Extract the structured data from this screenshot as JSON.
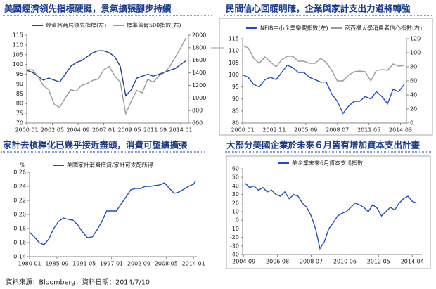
{
  "chart_data": [
    {
      "type": "line",
      "title": "美國經濟領先指標硬挺，景氣擴張腳步持續",
      "frame": false,
      "x": [
        2000,
        2000.5,
        2001,
        2001.5,
        2002,
        2002.5,
        2003,
        2003.5,
        2004,
        2004.5,
        2005,
        2005.5,
        2006,
        2006.5,
        2007,
        2007.5,
        2008,
        2008.5,
        2009,
        2009.5,
        2010,
        2010.5,
        2011,
        2011.5,
        2012,
        2012.5,
        2013,
        2013.5,
        2014,
        2014.5
      ],
      "xlim": [
        2000,
        2014.7
      ],
      "xticks": [
        {
          "value": 2000,
          "label": "2000 01"
        },
        {
          "value": 2002.333,
          "label": "2002 05"
        },
        {
          "value": 2004.667,
          "label": "2004 09"
        },
        {
          "value": 2007,
          "label": "2007 01"
        },
        {
          "value": 2009.333,
          "label": "2009 05"
        },
        {
          "value": 2011.667,
          "label": "2011 09"
        },
        {
          "value": 2014,
          "label": "2014 01"
        }
      ],
      "ylim": [
        70,
        115
      ],
      "yticks": [
        70,
        75,
        80,
        85,
        90,
        95,
        100,
        105,
        110,
        115
      ],
      "y2lim": [
        600,
        2000
      ],
      "y2ticks": [
        600,
        800,
        1000,
        1200,
        1400,
        1600,
        1800,
        2000
      ],
      "series": [
        {
          "name": "經濟諮商局領先指標(左)",
          "color": "#1f3f8f",
          "values": [
            97,
            96,
            94,
            92,
            93,
            92,
            91,
            95,
            99,
            101,
            102,
            104,
            106,
            107,
            107,
            106,
            104,
            99,
            84,
            87,
            93,
            94,
            95,
            94,
            95,
            96,
            97,
            98,
            100,
            102
          ]
        },
        {
          "name": "標準普爾500指數(右)",
          "color": "#9a9a9a",
          "axis": "y2",
          "values": [
            1450,
            1450,
            1350,
            1200,
            1130,
            900,
            850,
            1000,
            1130,
            1110,
            1200,
            1230,
            1280,
            1300,
            1450,
            1500,
            1350,
            1250,
            750,
            950,
            1120,
            1080,
            1300,
            1250,
            1350,
            1400,
            1500,
            1650,
            1800,
            1960
          ]
        }
      ]
    },
    {
      "type": "line",
      "title": "民間信心回暖明確，企業與家計支出力道將轉強",
      "frame": true,
      "x": [
        2000,
        2000.5,
        2001,
        2001.5,
        2002,
        2002.5,
        2003,
        2003.5,
        2004,
        2004.5,
        2005,
        2005.5,
        2006,
        2006.5,
        2007,
        2007.5,
        2008,
        2008.5,
        2009,
        2009.5,
        2010,
        2010.5,
        2011,
        2011.5,
        2012,
        2012.5,
        2013,
        2013.5,
        2014,
        2014.5
      ],
      "xlim": [
        2000,
        2014.7
      ],
      "xticks": [
        {
          "value": 2000,
          "label": "2000 01"
        },
        {
          "value": 2002.833,
          "label": "2002 11"
        },
        {
          "value": 2005.667,
          "label": "2005 09"
        },
        {
          "value": 2008.5,
          "label": "2008 07"
        },
        {
          "value": 2011.333,
          "label": "2011 05"
        },
        {
          "value": 2014.167,
          "label": "2014 03"
        }
      ],
      "ylim": [
        80,
        115
      ],
      "yticks": [
        80,
        85,
        90,
        95,
        100,
        105,
        110,
        115
      ],
      "y2lim": [
        0,
        120
      ],
      "y2ticks": [
        0,
        20,
        40,
        60,
        80,
        100,
        120
      ],
      "series": [
        {
          "name": "NFIB中小企業樂觀指數(左)",
          "color": "#1f4fbf",
          "values": [
            100,
            99,
            96,
            95,
            98,
            99,
            98,
            101,
            104,
            103,
            101,
            101,
            99,
            98,
            97,
            97,
            92,
            89,
            84,
            87,
            89,
            89,
            91,
            90,
            93,
            91,
            88,
            94,
            93,
            96
          ]
        },
        {
          "name": "密西根大學消費者信心指數(右)",
          "color": "#9a9a9a",
          "axis": "y2",
          "values": [
            110,
            107,
            92,
            85,
            94,
            87,
            80,
            90,
            95,
            95,
            88,
            88,
            85,
            85,
            92,
            86,
            75,
            60,
            60,
            68,
            73,
            74,
            73,
            60,
            75,
            76,
            75,
            84,
            81,
            82
          ]
        }
      ]
    },
    {
      "type": "line",
      "title": "家計去槓桿化已幾乎接近盡頭，消費可望續擴張",
      "frame": false,
      "y_label": "%",
      "x": [
        1980,
        1981,
        1982,
        1983,
        1984,
        1985,
        1986,
        1987,
        1988,
        1989,
        1990,
        1991,
        1992,
        1993,
        1994,
        1995,
        1996,
        1997,
        1998,
        1999,
        2000,
        2001,
        2002,
        2003,
        2004,
        2005,
        2006,
        2007,
        2008,
        2009,
        2010,
        2011,
        2012,
        2013,
        2014,
        2014.5
      ],
      "xlim": [
        1980,
        2014.7
      ],
      "xticks": [
        {
          "value": 1980,
          "label": "1980 01"
        },
        {
          "value": 1985.667,
          "label": "1985 09"
        },
        {
          "value": 1991.333,
          "label": "1991 05"
        },
        {
          "value": 1997,
          "label": "1997 01"
        },
        {
          "value": 2002.667,
          "label": "2002 09"
        },
        {
          "value": 2008.333,
          "label": "2008 05"
        },
        {
          "value": 2014,
          "label": "2014 01"
        }
      ],
      "ylim": [
        0.14,
        0.26
      ],
      "yticks": [
        0.14,
        0.16,
        0.18,
        {
          "value": 0.2,
          "label": "0.20"
        },
        0.22,
        0.24,
        0.26
      ],
      "series": [
        {
          "name": "美國家計消費借貸/家計可支配所得",
          "color": "#1f4fbf",
          "values": [
            0.175,
            0.168,
            0.16,
            0.157,
            0.165,
            0.18,
            0.19,
            0.195,
            0.193,
            0.192,
            0.185,
            0.175,
            0.167,
            0.168,
            0.178,
            0.19,
            0.205,
            0.205,
            0.205,
            0.215,
            0.225,
            0.235,
            0.237,
            0.237,
            0.24,
            0.24,
            0.241,
            0.242,
            0.245,
            0.237,
            0.23,
            0.232,
            0.236,
            0.24,
            0.243,
            0.248
          ]
        }
      ]
    },
    {
      "type": "line",
      "title": "大部分美國企業於未來６月皆有增加資本支出計畫",
      "frame": true,
      "x": [
        2004.75,
        2005,
        2005.25,
        2005.5,
        2005.75,
        2006,
        2006.25,
        2006.5,
        2006.75,
        2007,
        2007.25,
        2007.5,
        2007.75,
        2008,
        2008.25,
        2008.5,
        2008.75,
        2009,
        2009.25,
        2009.5,
        2009.75,
        2010,
        2010.25,
        2010.5,
        2010.75,
        2011,
        2011.25,
        2011.5,
        2011.75,
        2012,
        2012.25,
        2012.5,
        2012.75,
        2013,
        2013.25,
        2013.5,
        2013.75,
        2014,
        2014.25,
        2014.5
      ],
      "xlim": [
        2004.6,
        2014.8
      ],
      "xticks": [
        {
          "value": 2004.667,
          "label": "2004 09"
        },
        {
          "value": 2006.583,
          "label": "2006 08"
        },
        {
          "value": 2008.5,
          "label": "2008 07"
        },
        {
          "value": 2010.417,
          "label": "2010 06"
        },
        {
          "value": 2012.333,
          "label": "2012 05"
        },
        {
          "value": 2014.25,
          "label": "2014 04"
        }
      ],
      "ylim": [
        -40,
        60
      ],
      "yticks": [
        -40,
        -30,
        -20,
        -10,
        0,
        10,
        20,
        30,
        40,
        50,
        60
      ],
      "series": [
        {
          "name": "美企業未來6月資本支出指數",
          "color": "#1f4fbf",
          "values": [
            43,
            38,
            40,
            35,
            38,
            33,
            35,
            30,
            28,
            33,
            25,
            30,
            28,
            20,
            15,
            5,
            -10,
            -33,
            -25,
            -10,
            -3,
            5,
            8,
            10,
            15,
            20,
            18,
            15,
            10,
            18,
            14,
            5,
            10,
            15,
            12,
            20,
            25,
            28,
            22,
            20
          ]
        }
      ]
    }
  ],
  "footer": "資料來源：Bloomberg，資料日期：2014/7/10"
}
